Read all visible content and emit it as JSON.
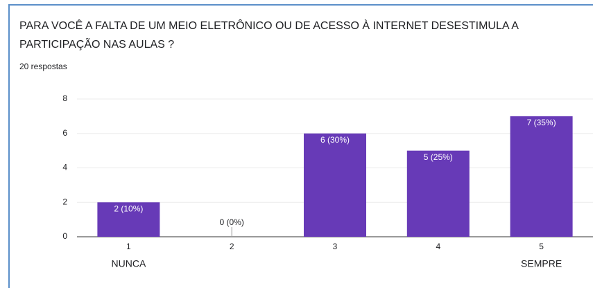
{
  "chart_data": {
    "type": "bar",
    "title": "PARA VOCÊ A FALTA DE UM MEIO ELETRÔNICO OU DE ACESSO À INTERNET DESESTIMULA A PARTICIPAÇÃO NAS AULAS ?",
    "subtitle": "20 respostas",
    "categories": [
      "1",
      "2",
      "3",
      "4",
      "5"
    ],
    "x_annotations": [
      "NUNCA",
      null,
      null,
      null,
      "SEMPRE"
    ],
    "values": [
      2,
      0,
      6,
      5,
      7
    ],
    "value_labels": [
      "2 (10%)",
      "0 (0%)",
      "6 (30%)",
      "5 (25%)",
      "7 (35%)"
    ],
    "color": "#673ab7",
    "ylim": [
      0,
      8
    ],
    "yticks": [
      0,
      2,
      4,
      6,
      8
    ],
    "grid": true
  }
}
